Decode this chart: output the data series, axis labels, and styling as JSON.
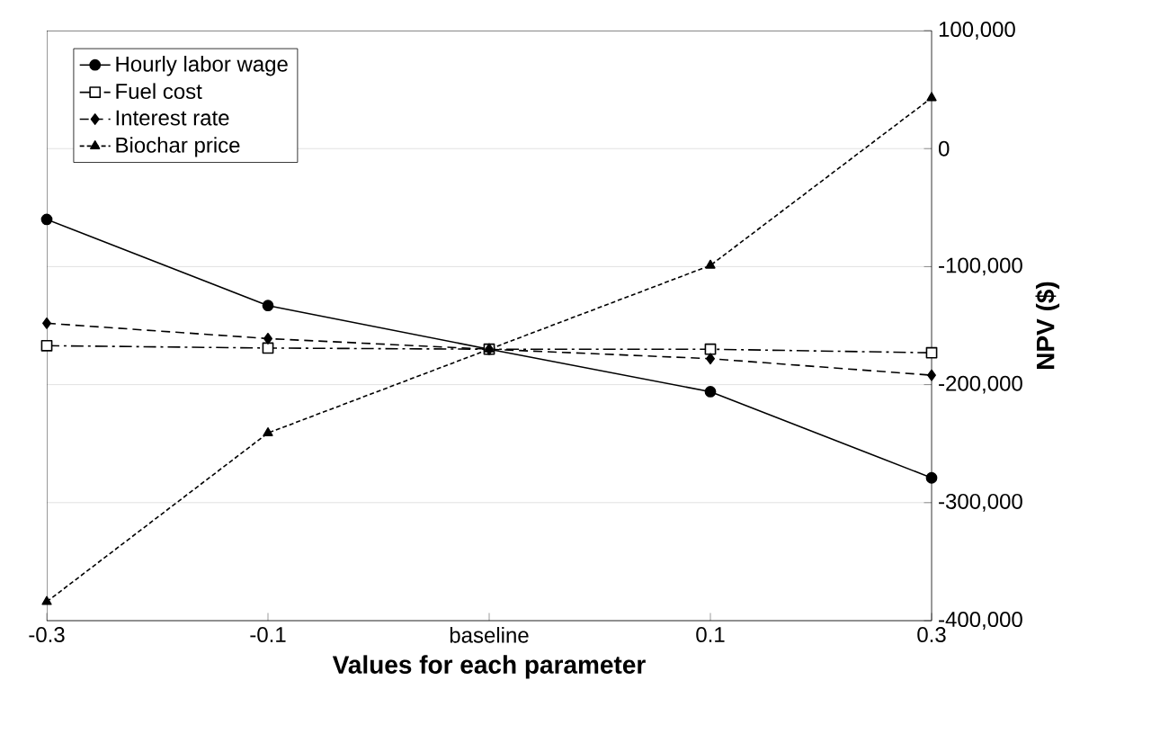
{
  "chart_data": {
    "type": "line",
    "xlabel": "Values for each parameter",
    "ylabel": "NPV ($)",
    "categories": [
      "-0.3",
      "-0.1",
      "baseline",
      "0.1",
      "0.3"
    ],
    "series": [
      {
        "name": "Hourly labor wage",
        "color": "#000000",
        "marker": "circle",
        "line_style": "solid",
        "values": [
          -60000,
          -133000,
          -170000,
          -206000,
          -279000
        ]
      },
      {
        "name": "Fuel cost",
        "color": "#000000",
        "marker": "square",
        "line_style": "dashdot",
        "values": [
          -167000,
          -169000,
          -170000,
          -170000,
          -173000
        ]
      },
      {
        "name": "Interest rate",
        "color": "#000000",
        "marker": "diamond",
        "line_style": "dashed",
        "values": [
          -148000,
          -161000,
          -170000,
          -178000,
          -192000
        ]
      },
      {
        "name": "Biochar price",
        "color": "#000000",
        "marker": "triangle",
        "line_style": "dotted",
        "values": [
          -384000,
          -241000,
          -170000,
          -99000,
          43000
        ]
      }
    ],
    "ylim": [
      -400000,
      100000
    ],
    "yticks": [
      {
        "value": -400000,
        "label": "-400,000"
      },
      {
        "value": -300000,
        "label": "-300,000"
      },
      {
        "value": -200000,
        "label": "-200,000"
      },
      {
        "value": -100000,
        "label": "-100,000"
      },
      0,
      {
        "value": 100000,
        "label": "100,000"
      }
    ],
    "grid": "y",
    "legend": "top left"
  }
}
